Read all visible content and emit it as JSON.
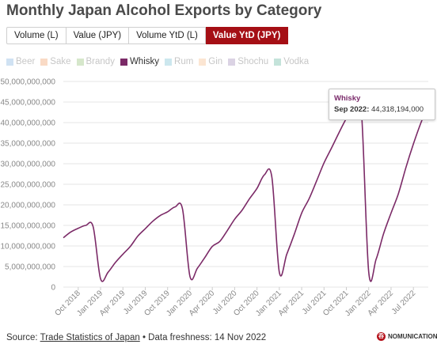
{
  "title": "Monthly Japan Alcohol Exports by Category",
  "tabs": [
    {
      "label": "Volume (L)",
      "active": false
    },
    {
      "label": "Value (JPY)",
      "active": false
    },
    {
      "label": "Volume YtD (L)",
      "active": false
    },
    {
      "label": "Value YtD (JPY)",
      "active": true
    }
  ],
  "legend": [
    {
      "label": "Beer",
      "color": "#5b9bd5",
      "active": false
    },
    {
      "label": "Sake",
      "color": "#ed7d31",
      "active": false
    },
    {
      "label": "Brandy",
      "color": "#70ad47",
      "active": false
    },
    {
      "label": "Whisky",
      "color": "#7b2a67",
      "active": true
    },
    {
      "label": "Rum",
      "color": "#4bacc6",
      "active": false
    },
    {
      "label": "Gin",
      "color": "#f4a460",
      "active": false
    },
    {
      "label": "Shochu",
      "color": "#8064a2",
      "active": false
    },
    {
      "label": "Vodka",
      "color": "#2e9e7e",
      "active": false
    }
  ],
  "tooltip": {
    "series": "Whisky",
    "label": "Sep 2022:",
    "value": "44,318,194,000"
  },
  "source": {
    "prefix": "Source: ",
    "link": "Trade Statistics of Japan",
    "suffix": " • Data freshness: 14 Nov 2022"
  },
  "brand": "NOMUNICATION",
  "chart_data": {
    "type": "line",
    "series": [
      {
        "name": "Whisky",
        "color": "#7b2a67",
        "x": [
          "2018-08",
          "2018-09",
          "2018-10",
          "2018-11",
          "2018-12",
          "2019-01",
          "2019-02",
          "2019-03",
          "2019-04",
          "2019-05",
          "2019-06",
          "2019-07",
          "2019-08",
          "2019-09",
          "2019-10",
          "2019-11",
          "2019-12",
          "2020-01",
          "2020-02",
          "2020-03",
          "2020-04",
          "2020-05",
          "2020-06",
          "2020-07",
          "2020-08",
          "2020-09",
          "2020-10",
          "2020-11",
          "2020-12",
          "2021-01",
          "2021-02",
          "2021-03",
          "2021-04",
          "2021-05",
          "2021-06",
          "2021-07",
          "2021-08",
          "2021-09",
          "2021-10",
          "2021-11",
          "2021-12",
          "2022-01",
          "2022-02",
          "2022-03",
          "2022-04",
          "2022-05",
          "2022-06",
          "2022-07",
          "2022-08",
          "2022-09"
        ],
        "values": [
          12000000000,
          13400000000,
          14300000000,
          15000000000,
          14700000000,
          2000000000,
          3600000000,
          6000000000,
          8000000000,
          9900000000,
          12400000000,
          14200000000,
          16000000000,
          17400000000,
          18300000000,
          19500000000,
          19000000000,
          2600000000,
          4600000000,
          7200000000,
          9900000000,
          11100000000,
          13700000000,
          16500000000,
          18700000000,
          21500000000,
          24000000000,
          27300000000,
          26700000000,
          3600000000,
          8000000000,
          12800000000,
          18000000000,
          21500000000,
          25800000000,
          30200000000,
          33800000000,
          37500000000,
          41000000000,
          43500000000,
          43200000000,
          3700000000,
          6800000000,
          13000000000,
          18000000000,
          22800000000,
          29100000000,
          34800000000,
          39900000000,
          44318194000
        ]
      }
    ],
    "xticks": [
      "Oct 2018",
      "Jan 2019",
      "Apr 2019",
      "Jul 2019",
      "Oct 2019",
      "Jan 2020",
      "Apr 2020",
      "Jul 2020",
      "Oct 2020",
      "Jan 2021",
      "Apr 2021",
      "Jul 2021",
      "Oct 2021",
      "Jan 2022",
      "Apr 2022",
      "Jul 2022"
    ],
    "yticks": [
      0,
      5000000000,
      10000000000,
      15000000000,
      20000000000,
      25000000000,
      30000000000,
      35000000000,
      40000000000,
      45000000000,
      50000000000
    ],
    "ylim": [
      0,
      50000000000
    ],
    "grid": true,
    "xlabel": "",
    "ylabel": ""
  }
}
